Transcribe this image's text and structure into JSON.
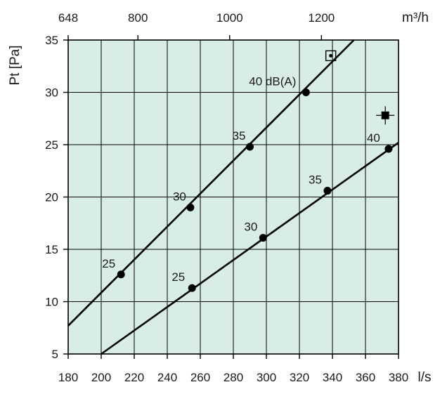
{
  "chart_data": {
    "type": "line",
    "background": "#d8ece8",
    "x": {
      "label": "l/s",
      "range": [
        180,
        380
      ],
      "ticks": [
        180,
        200,
        220,
        240,
        260,
        280,
        300,
        320,
        340,
        360,
        380
      ]
    },
    "x_top": {
      "label": "m³/h",
      "ticks": [
        648,
        800,
        1000,
        1200
      ]
    },
    "y": {
      "label": "Pt [Pa]",
      "range": [
        5,
        35
      ],
      "ticks": [
        5,
        10,
        15,
        20,
        25,
        30,
        35
      ]
    },
    "grid": true,
    "series": [
      {
        "line": [
          [
            180,
            7.7
          ],
          [
            353,
            35
          ]
        ],
        "points": [
          {
            "x": 212,
            "y": 12.6,
            "label": "25"
          },
          {
            "x": 254,
            "y": 19.0,
            "label": "30"
          },
          {
            "x": 290,
            "y": 24.8,
            "label": "35"
          },
          {
            "x": 324,
            "y": 30.0,
            "label": "40 dB(A)"
          }
        ]
      },
      {
        "line": [
          [
            200,
            5.0
          ],
          [
            380,
            25.2
          ]
        ],
        "points": [
          {
            "x": 255,
            "y": 11.3,
            "label": "25"
          },
          {
            "x": 298,
            "y": 16.1,
            "label": "30"
          },
          {
            "x": 337,
            "y": 20.6,
            "label": "35"
          },
          {
            "x": 374,
            "y": 24.6,
            "label": "40"
          }
        ]
      }
    ],
    "icons": [
      {
        "name": "duct-outlet-open-icon",
        "x": 339,
        "y": 33.5
      },
      {
        "name": "duct-outlet-closed-icon",
        "x": 372,
        "y": 27.8
      }
    ]
  }
}
